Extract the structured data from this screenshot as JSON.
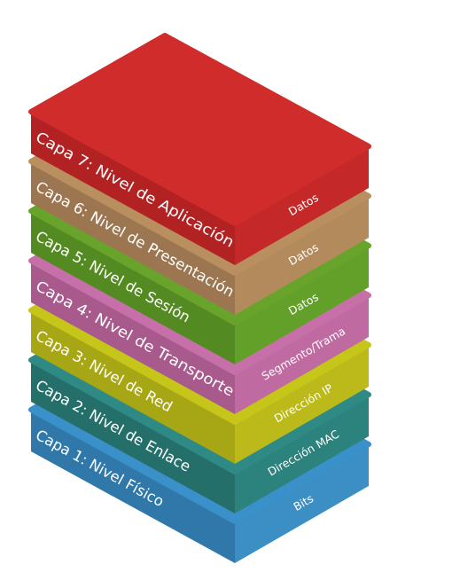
{
  "diagram": {
    "layers": [
      {
        "label": "Capa 1: Nivel Físico",
        "pdu": "Bits",
        "top_color": "#3a91c9",
        "left_color": "#2f78a9",
        "right_color": "#3c8fc5"
      },
      {
        "label": "Capa 2: Nivel de Enlace",
        "pdu": "Dirección MAC",
        "top_color": "#2f8a85",
        "left_color": "#256f6b",
        "right_color": "#2c827d"
      },
      {
        "label": "Capa 3: Nivel de Red",
        "pdu": "Dirección IP",
        "top_color": "#c6c51a",
        "left_color": "#a7a615",
        "right_color": "#bcba1a"
      },
      {
        "label": "Capa 4: Nivel de Transporte",
        "pdu": "Segmento/Trama",
        "top_color": "#c76fa8",
        "left_color": "#a95a8d",
        "right_color": "#c06aa2"
      },
      {
        "label": "Capa 5: Nivel de Sesión",
        "pdu": "Datos",
        "top_color": "#68a42b",
        "left_color": "#548a22",
        "right_color": "#62a02a"
      },
      {
        "label": "Capa 6: Nivel de Presentación",
        "pdu": "Datos",
        "top_color": "#b98f5f",
        "left_color": "#9c7650",
        "right_color": "#b38a5b"
      },
      {
        "label": "Capa 7: Nivel de Aplicación",
        "pdu": "Datos",
        "top_color": "#d12c2c",
        "left_color": "#b32222",
        "right_color": "#c42828"
      }
    ]
  }
}
